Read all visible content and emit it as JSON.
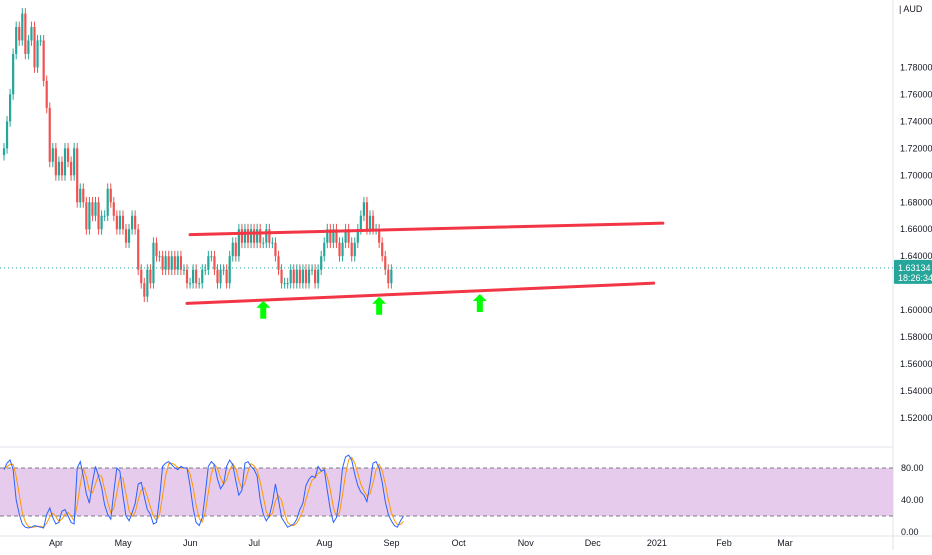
{
  "chart_data": {
    "type": "candlestick",
    "currency_label": "AUD",
    "price_axis": {
      "ylim": [
        1.5,
        1.83
      ],
      "ticks": [
        "1.78000",
        "1.76000",
        "1.74000",
        "1.72000",
        "1.70000",
        "1.68000",
        "1.66000",
        "1.64000",
        "1.60000",
        "1.58000",
        "1.56000",
        "1.54000",
        "1.52000"
      ],
      "tick_values": [
        1.78,
        1.76,
        1.74,
        1.72,
        1.7,
        1.68,
        1.66,
        1.64,
        1.6,
        1.58,
        1.56,
        1.54,
        1.52
      ]
    },
    "last_price": {
      "label": "1.63134",
      "value": 1.63134,
      "countdown": "18:26:34"
    },
    "time_axis": {
      "labels": [
        "Apr",
        "May",
        "Jun",
        "Jul",
        "Aug",
        "Sep",
        "Oct",
        "Nov",
        "Dec",
        "2021",
        "Feb",
        "Mar"
      ],
      "bar_index": [
        0,
        22,
        44,
        65,
        88,
        110,
        132,
        154,
        176,
        197,
        219,
        239
      ]
    },
    "close_series": [
      1.72,
      1.74,
      1.76,
      1.79,
      1.81,
      1.8,
      1.82,
      1.79,
      1.8,
      1.81,
      1.78,
      1.8,
      1.8,
      1.77,
      1.75,
      1.71,
      1.72,
      1.7,
      1.71,
      1.7,
      1.72,
      1.71,
      1.7,
      1.72,
      1.68,
      1.69,
      1.68,
      1.66,
      1.68,
      1.67,
      1.68,
      1.66,
      1.67,
      1.67,
      1.69,
      1.68,
      1.67,
      1.66,
      1.67,
      1.66,
      1.65,
      1.66,
      1.67,
      1.66,
      1.63,
      1.62,
      1.61,
      1.63,
      1.62,
      1.65,
      1.64,
      1.64,
      1.63,
      1.64,
      1.63,
      1.64,
      1.63,
      1.64,
      1.63,
      1.63,
      1.62,
      1.62,
      1.63,
      1.62,
      1.62,
      1.63,
      1.63,
      1.64,
      1.64,
      1.63,
      1.62,
      1.63,
      1.63,
      1.62,
      1.64,
      1.65,
      1.64,
      1.66,
      1.65,
      1.66,
      1.65,
      1.66,
      1.65,
      1.66,
      1.65,
      1.65,
      1.66,
      1.65,
      1.65,
      1.64,
      1.63,
      1.62,
      1.62,
      1.62,
      1.63,
      1.62,
      1.63,
      1.62,
      1.63,
      1.62,
      1.63,
      1.63,
      1.62,
      1.63,
      1.64,
      1.65,
      1.66,
      1.65,
      1.66,
      1.65,
      1.64,
      1.65,
      1.66,
      1.65,
      1.64,
      1.65,
      1.66,
      1.67,
      1.68,
      1.66,
      1.67,
      1.66,
      1.66,
      1.65,
      1.64,
      1.63,
      1.62,
      1.63
    ],
    "channel_lines": [
      {
        "name": "upper",
        "from": [
          61,
          1.656
        ],
        "to": [
          216,
          1.6645
        ]
      },
      {
        "name": "lower",
        "from": [
          60,
          1.605
        ],
        "to": [
          213,
          1.62
        ]
      }
    ],
    "arrows": [
      {
        "bar": 85,
        "price": 1.601
      },
      {
        "bar": 123,
        "price": 1.604
      },
      {
        "bar": 156,
        "price": 1.606
      }
    ],
    "oscillator": {
      "type": "stochastic",
      "ylim": [
        0,
        100
      ],
      "band": [
        20,
        80
      ],
      "ticks": [
        "80.00",
        "40.00",
        "0.00"
      ],
      "tick_values": [
        80,
        40,
        0
      ],
      "k_values": [
        78,
        86,
        90,
        78,
        40,
        22,
        10,
        6,
        5,
        6,
        8,
        7,
        6,
        5,
        22,
        30,
        18,
        10,
        12,
        26,
        28,
        20,
        12,
        10,
        80,
        88,
        70,
        48,
        36,
        62,
        82,
        70,
        56,
        34,
        22,
        16,
        50,
        80,
        76,
        46,
        20,
        14,
        24,
        36,
        60,
        62,
        44,
        28,
        22,
        10,
        12,
        42,
        82,
        86,
        88,
        84,
        80,
        78,
        82,
        80,
        80,
        58,
        30,
        12,
        8,
        18,
        48,
        82,
        88,
        84,
        66,
        54,
        60,
        82,
        90,
        84,
        64,
        46,
        52,
        86,
        88,
        82,
        78,
        70,
        40,
        22,
        14,
        20,
        36,
        60,
        40,
        18,
        12,
        6,
        8,
        10,
        16,
        28,
        36,
        58,
        66,
        70,
        68,
        82,
        76,
        78,
        52,
        28,
        12,
        18,
        42,
        80,
        94,
        96,
        90,
        72,
        58,
        50,
        46,
        38,
        60,
        86,
        88,
        80,
        62,
        38,
        22,
        14,
        8,
        6,
        14,
        20
      ]
    },
    "colors": {
      "up": "#26a69a",
      "down": "#ef5350",
      "trendline": "#f23645",
      "arrow": "#00ff00",
      "k_line": "#2962ff",
      "d_line": "#ff9800",
      "band_fill": "#e1bee7"
    }
  }
}
